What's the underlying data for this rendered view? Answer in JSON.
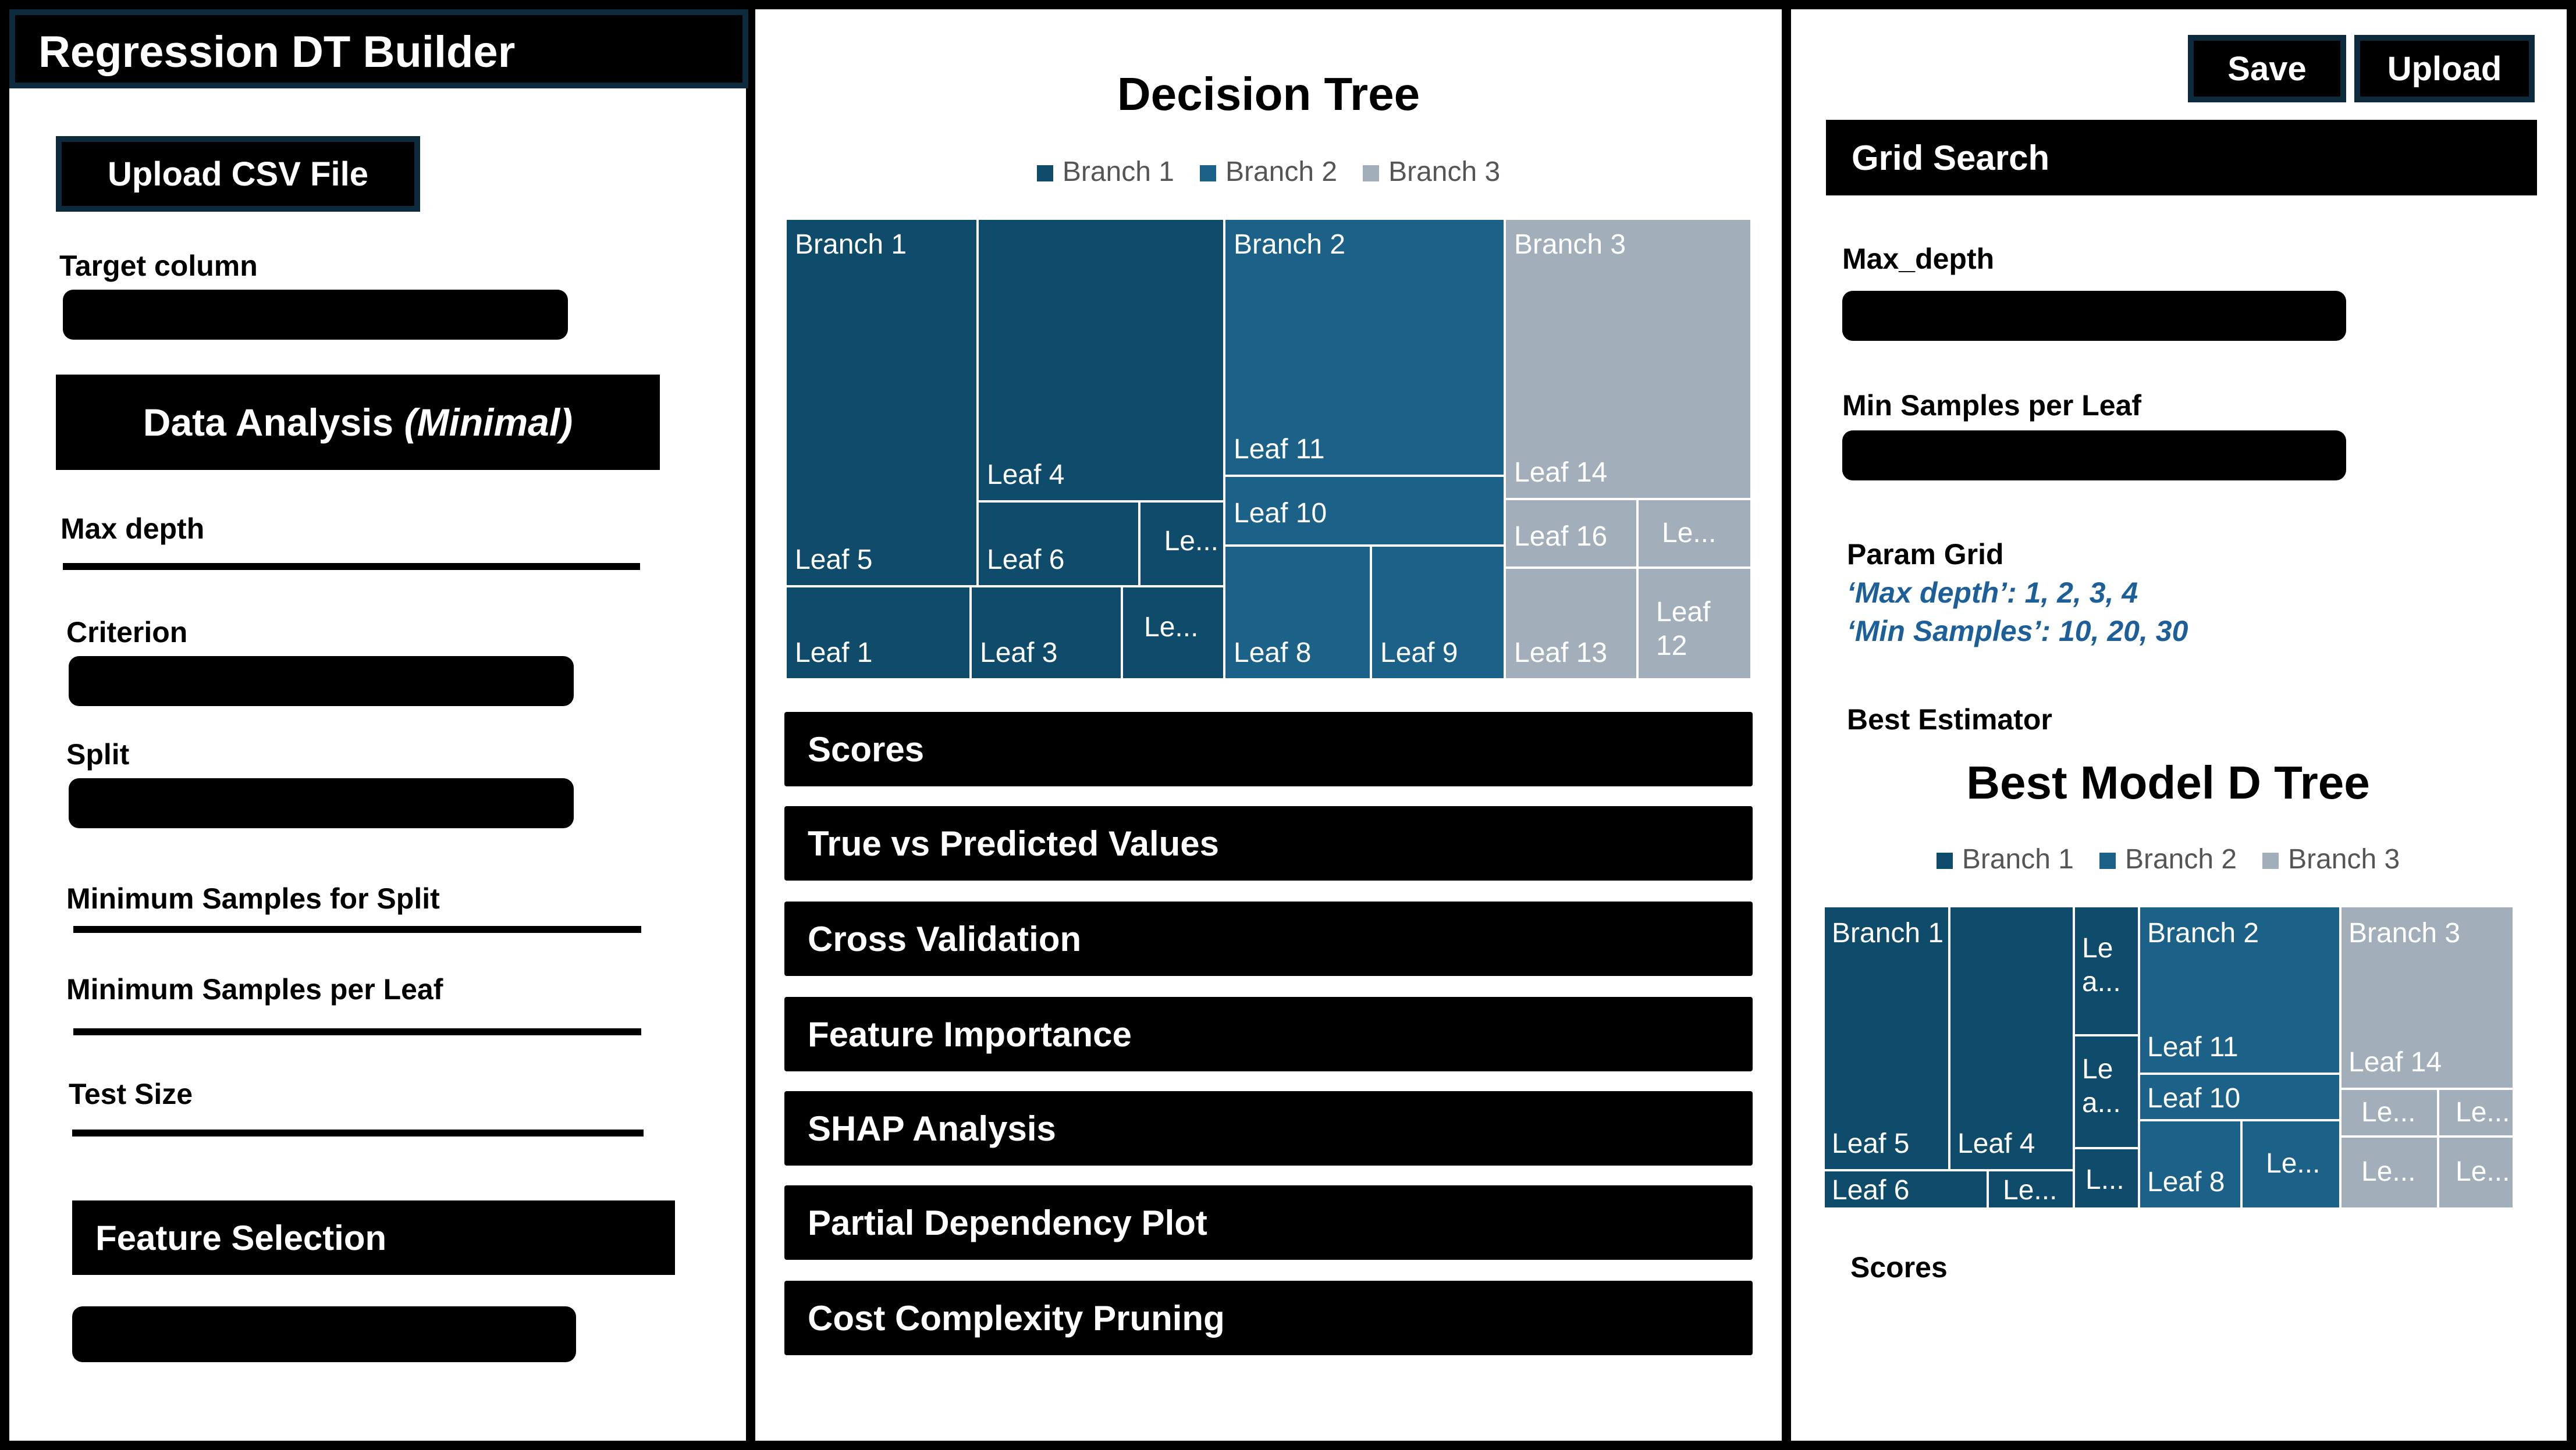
{
  "colors": {
    "branch1": "#0f4c6b",
    "branch2": "#1b6188",
    "branch3": "#a2afbb"
  },
  "left": {
    "app_title": "Regression DT Builder",
    "upload_button": "Upload CSV File",
    "target_column_label": "Target column",
    "data_analysis_label": "Data Analysis ",
    "data_analysis_suffix": "(Minimal)",
    "max_depth_label": "Max depth",
    "criterion_label": "Criterion",
    "split_label": "Split",
    "min_samples_split_label": "Minimum Samples for Split",
    "min_samples_leaf_label": "Minimum Samples per Leaf",
    "test_size_label": "Test Size",
    "feature_selection_label": "Feature Selection"
  },
  "center": {
    "title": "Decision Tree",
    "legend": [
      "Branch 1",
      "Branch 2",
      "Branch 3"
    ],
    "tiles": {
      "branch1": "Branch 1",
      "leaf4": "Leaf 4",
      "leaf5": "Leaf 5",
      "leaf6": "Leaf 6",
      "le_a": "Le...",
      "leaf1": "Leaf 1",
      "leaf3": "Leaf 3",
      "le_b": "Le...",
      "branch2": "Branch 2",
      "leaf11": "Leaf 11",
      "leaf10": "Leaf 10",
      "leaf8": "Leaf 8",
      "leaf9": "Leaf 9",
      "branch3": "Branch 3",
      "leaf14": "Leaf 14",
      "leaf16": "Leaf 16",
      "le_c": "Le...",
      "leaf13": "Leaf 13",
      "leaf12": "Leaf\n12"
    },
    "sections": [
      "Scores",
      "True vs Predicted Values",
      "Cross Validation",
      "Feature Importance",
      "SHAP Analysis",
      "Partial Dependency Plot",
      "Cost Complexity Pruning"
    ]
  },
  "right": {
    "save_button": "Save",
    "upload_button": "Upload",
    "grid_search_label": "Grid Search",
    "max_depth_label": "Max_depth",
    "min_samples_leaf_label": "Min Samples per Leaf",
    "param_grid_label": "Param Grid",
    "param_line1": "‘Max depth’: 1, 2, 3, 4",
    "param_line2": "‘Min Samples’: 10, 20, 30",
    "best_estimator_label": "Best Estimator",
    "best_model_title": "Best Model D Tree",
    "legend": [
      "Branch 1",
      "Branch 2",
      "Branch 3"
    ],
    "tiles": {
      "branch1": "Branch 1",
      "leaf5": "Leaf 5",
      "leaf4": "Leaf 4",
      "leaf6": "Leaf 6",
      "le_a": "Le...",
      "lea1": "Le\na...",
      "lea2": "Le\na...",
      "l_small": "L...",
      "branch2": "Branch 2",
      "leaf11": "Leaf 11",
      "leaf10": "Leaf 10",
      "leaf8": "Leaf 8",
      "le_b": "Le...",
      "branch3": "Branch 3",
      "leaf14": "Leaf 14",
      "le_c": "Le...",
      "le_d": "Le...",
      "le_e": "Le...",
      "le_f": "Le..."
    },
    "scores_label": "Scores"
  }
}
